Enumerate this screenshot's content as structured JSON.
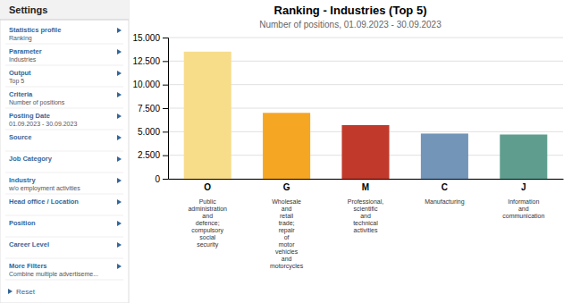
{
  "chart_data": {
    "type": "bar",
    "title": "Ranking - Industries (Top 5)",
    "subtitle": "Number of positions, 01.09.2023 - 30.09.2023",
    "categories": [
      "O",
      "G",
      "M",
      "C",
      "J"
    ],
    "category_labels": [
      "Public\nadministration\nand\ndefence;\ncompulsory\nsocial\nsecurity",
      "Wholesale\nand\nretail\ntrade;\nrepair\nof\nmotor\nvehicles\nand\nmotorcycles",
      "Professional,\nscientific\nand\ntechnical\nactivities",
      "Manufacturing",
      "Information\nand\ncommunication"
    ],
    "values": [
      13500,
      7000,
      5700,
      4800,
      4700
    ],
    "colors": [
      "#F7DC8A",
      "#F5A623",
      "#C0392B",
      "#7295B8",
      "#5F9E8F"
    ],
    "ylim": [
      0,
      15000
    ],
    "yticks": [
      0,
      {
        "value": 2500,
        "label": "2.500"
      },
      {
        "value": 5000,
        "label": "5.000"
      },
      {
        "value": 7500,
        "label": "7.500"
      },
      {
        "value": 10000,
        "label": "10.000"
      },
      {
        "value": 12500,
        "label": "12.500"
      },
      {
        "value": 15000,
        "label": "15.000"
      }
    ],
    "grid": true,
    "panel": {
      "title": "Settings",
      "items": [
        {
          "label": "Statistics profile",
          "value": "Ranking"
        },
        {
          "label": "Parameter",
          "value": "Industries"
        },
        {
          "label": "Output",
          "value": "Top 5"
        },
        {
          "label": "Criteria",
          "value": "Number of positions"
        },
        {
          "label": "Posting Date",
          "value": "01.09.2023 - 30.09.2023"
        },
        {
          "label": "Source"
        },
        {
          "label": "Job Category"
        },
        {
          "label": "Industry",
          "value": "w/o employment activities"
        },
        {
          "label": "Head office / Location"
        },
        {
          "label": "Position"
        },
        {
          "label": "Career Level"
        },
        {
          "label": "More Filters",
          "value": "Combine multiple advertiseme..."
        }
      ],
      "reset": "Reset"
    }
  }
}
